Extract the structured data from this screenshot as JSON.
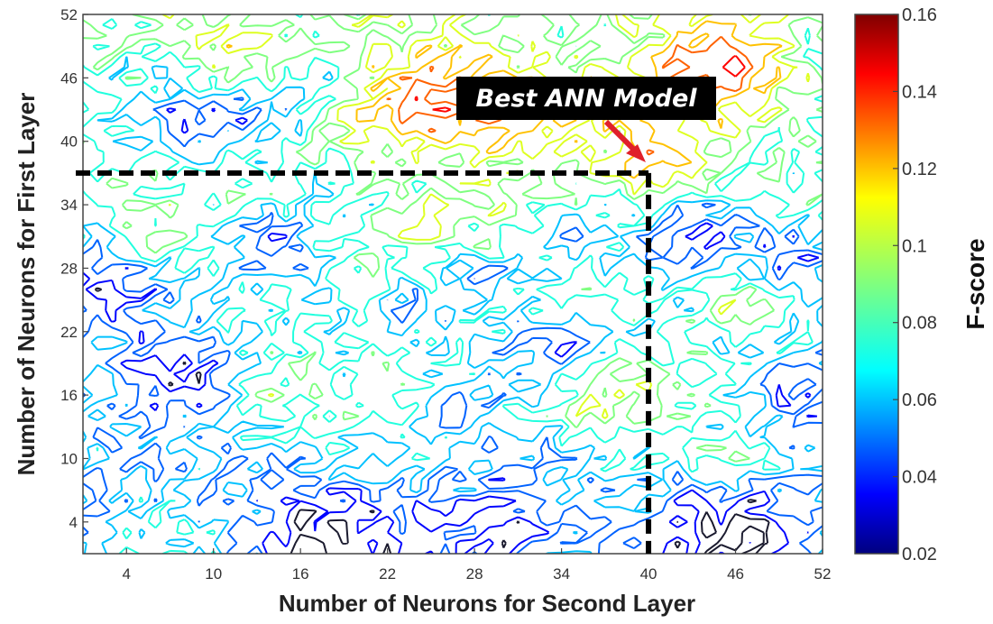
{
  "chart_data": {
    "type": "contour",
    "xlabel": "Number of Neurons for Second Layer",
    "ylabel": "Number of Neurons for First Layer",
    "xlim": [
      1,
      52
    ],
    "ylim": [
      1,
      52
    ],
    "xticks": [
      4,
      10,
      16,
      22,
      28,
      34,
      40,
      46,
      52
    ],
    "yticks": [
      4,
      10,
      16,
      22,
      28,
      34,
      40,
      46,
      52
    ],
    "colorbar": {
      "label": "F-score",
      "range": [
        0.02,
        0.16
      ],
      "ticks": [
        "0.02",
        "0.04",
        "0.06",
        "0.08",
        "0.1",
        "0.12",
        "0.14",
        "0.16"
      ],
      "colormap": "jet"
    },
    "contour_levels": [
      0.02,
      0.04,
      0.06,
      0.08,
      0.1,
      0.12,
      0.14,
      0.16
    ],
    "annotation": {
      "text": "Best ANN Model",
      "x": 40,
      "y": 37,
      "marker": "dashed crosshair"
    },
    "grid": false,
    "colorbar_position": "right"
  },
  "colors": {
    "annotation_bg": "#000000",
    "arrow": "#e0202a",
    "dashed_line": "#000000"
  }
}
